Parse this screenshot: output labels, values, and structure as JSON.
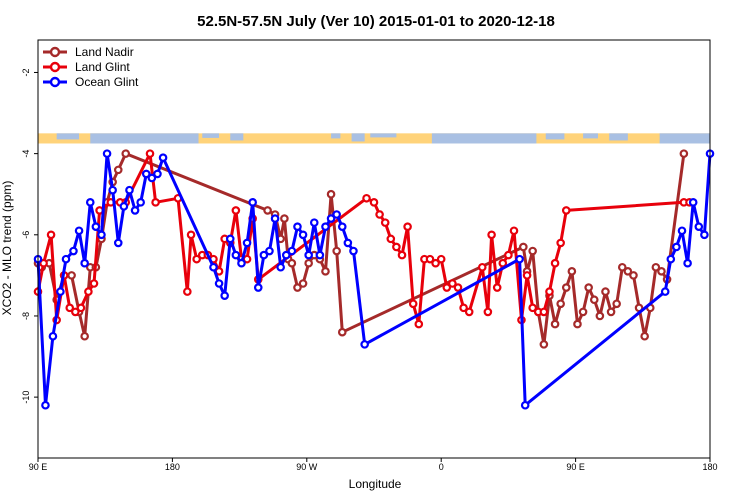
{
  "chart_data": {
    "type": "line",
    "title": "52.5N-57.5N July (Ver 10)   2015-01-01 to 2020-12-18",
    "xlabel": "Longitude",
    "ylabel": "XCO2 - MLO trend (ppm)",
    "xlim": [
      90,
      450
    ],
    "ylim": [
      -11.5,
      -1.2
    ],
    "xticks": [
      {
        "value": 90,
        "label": "90 E"
      },
      {
        "value": 180,
        "label": "180"
      },
      {
        "value": 270,
        "label": "90 W"
      },
      {
        "value": 360,
        "label": "0"
      },
      {
        "value": 450,
        "label": "90 E"
      },
      {
        "value": 540,
        "label": "180"
      }
    ],
    "xticks_visible": [
      90,
      162,
      234,
      306,
      378,
      450
    ],
    "yticks": [
      {
        "value": -2,
        "label": "-2"
      },
      {
        "value": -4,
        "label": "-4"
      },
      {
        "value": -6,
        "label": "-6"
      },
      {
        "value": -8,
        "label": "-8"
      },
      {
        "value": -10,
        "label": "-10"
      }
    ],
    "grid": false,
    "legend": "top-left",
    "land_ocean_strip": {
      "y_top": -3.5,
      "y_bottom": -3.75,
      "land_color": "#FFD37A",
      "ocean_color": "#A9C0E3"
    },
    "series": [
      {
        "name": "Land Nadir",
        "color": "#A52A2A",
        "points": [
          [
            90,
            -6.7
          ],
          [
            92,
            -6.8
          ],
          [
            96,
            -6.7
          ],
          [
            100,
            -7.6
          ],
          [
            104,
            -7.0
          ],
          [
            108,
            -7.0
          ],
          [
            112,
            -7.9
          ],
          [
            115,
            -8.5
          ],
          [
            118,
            -6.8
          ],
          [
            121,
            -6.8
          ],
          [
            124,
            -6.1
          ],
          [
            127,
            -5.2
          ],
          [
            130,
            -4.7
          ],
          [
            133,
            -4.4
          ],
          [
            137,
            -4.0
          ],
          [
            213,
            -5.4
          ],
          [
            217,
            -5.5
          ],
          [
            220,
            -6.1
          ],
          [
            222,
            -5.6
          ],
          [
            224,
            -6.6
          ],
          [
            226,
            -6.7
          ],
          [
            229,
            -7.3
          ],
          [
            232,
            -7.2
          ],
          [
            235,
            -6.7
          ],
          [
            238,
            -6.5
          ],
          [
            241,
            -6.6
          ],
          [
            244,
            -6.9
          ],
          [
            247,
            -5.0
          ],
          [
            250,
            -6.4
          ],
          [
            253,
            -8.4
          ],
          [
            350,
            -6.3
          ],
          [
            352,
            -6.9
          ],
          [
            355,
            -6.4
          ],
          [
            358,
            -7.9
          ],
          [
            361,
            -8.7
          ],
          [
            364,
            -7.5
          ],
          [
            367,
            -8.2
          ],
          [
            370,
            -7.7
          ],
          [
            373,
            -7.3
          ],
          [
            376,
            -6.9
          ],
          [
            379,
            -8.2
          ],
          [
            382,
            -7.9
          ],
          [
            385,
            -7.3
          ],
          [
            388,
            -7.6
          ],
          [
            391,
            -8.0
          ],
          [
            394,
            -7.4
          ],
          [
            397,
            -7.9
          ],
          [
            400,
            -7.7
          ],
          [
            403,
            -6.8
          ],
          [
            406,
            -6.9
          ],
          [
            409,
            -7.0
          ],
          [
            412,
            -7.8
          ],
          [
            415,
            -8.5
          ],
          [
            418,
            -7.8
          ],
          [
            421,
            -6.8
          ],
          [
            424,
            -6.9
          ],
          [
            427,
            -7.1
          ],
          [
            436,
            -4.0
          ]
        ]
      },
      {
        "name": "Land Glint",
        "color": "#E8000B",
        "points": [
          [
            90,
            -7.4
          ],
          [
            93,
            -6.7
          ],
          [
            97,
            -6.0
          ],
          [
            100,
            -8.1
          ],
          [
            104,
            -7.0
          ],
          [
            107,
            -7.8
          ],
          [
            110,
            -7.9
          ],
          [
            113,
            -7.8
          ],
          [
            117,
            -7.4
          ],
          [
            120,
            -7.2
          ],
          [
            123,
            -5.4
          ],
          [
            129,
            -5.2
          ],
          [
            134,
            -5.2
          ],
          [
            137,
            -5.2
          ],
          [
            150,
            -4.0
          ],
          [
            153,
            -5.2
          ],
          [
            165,
            -5.1
          ],
          [
            170,
            -7.4
          ],
          [
            172,
            -6.0
          ],
          [
            175,
            -6.6
          ],
          [
            178,
            -6.5
          ],
          [
            181,
            -6.5
          ],
          [
            184,
            -6.6
          ],
          [
            187,
            -6.9
          ],
          [
            190,
            -6.1
          ],
          [
            193,
            -6.2
          ],
          [
            196,
            -5.4
          ],
          [
            199,
            -6.6
          ],
          [
            202,
            -6.6
          ],
          [
            205,
            -5.6
          ],
          [
            208,
            -7.1
          ],
          [
            266,
            -5.1
          ],
          [
            270,
            -5.2
          ],
          [
            273,
            -5.5
          ],
          [
            276,
            -5.7
          ],
          [
            279,
            -6.1
          ],
          [
            282,
            -6.3
          ],
          [
            285,
            -6.5
          ],
          [
            288,
            -5.8
          ],
          [
            291,
            -7.7
          ],
          [
            294,
            -8.2
          ],
          [
            297,
            -6.6
          ],
          [
            300,
            -6.6
          ],
          [
            303,
            -6.7
          ],
          [
            306,
            -6.6
          ],
          [
            309,
            -7.3
          ],
          [
            312,
            -7.2
          ],
          [
            315,
            -7.3
          ],
          [
            318,
            -7.8
          ],
          [
            321,
            -7.9
          ],
          [
            328,
            -6.8
          ],
          [
            331,
            -7.9
          ],
          [
            333,
            -6.0
          ],
          [
            336,
            -7.3
          ],
          [
            339,
            -6.7
          ],
          [
            342,
            -6.5
          ],
          [
            345,
            -5.9
          ],
          [
            349,
            -8.1
          ],
          [
            352,
            -7.0
          ],
          [
            355,
            -7.8
          ],
          [
            358,
            -7.9
          ],
          [
            361,
            -7.9
          ],
          [
            364,
            -7.4
          ],
          [
            367,
            -6.7
          ],
          [
            370,
            -6.2
          ],
          [
            373,
            -5.4
          ],
          [
            436,
            -5.2
          ],
          [
            439,
            -5.2
          ]
        ]
      },
      {
        "name": "Ocean Glint",
        "color": "#0000FF",
        "points": [
          [
            90,
            -6.6
          ],
          [
            94,
            -10.2
          ],
          [
            98,
            -8.5
          ],
          [
            102,
            -7.4
          ],
          [
            105,
            -6.6
          ],
          [
            109,
            -6.4
          ],
          [
            112,
            -5.9
          ],
          [
            115,
            -6.7
          ],
          [
            118,
            -5.2
          ],
          [
            121,
            -5.8
          ],
          [
            124,
            -6.0
          ],
          [
            127,
            -4.0
          ],
          [
            130,
            -4.9
          ],
          [
            133,
            -6.2
          ],
          [
            136,
            -5.3
          ],
          [
            139,
            -4.9
          ],
          [
            142,
            -5.4
          ],
          [
            145,
            -5.2
          ],
          [
            148,
            -4.5
          ],
          [
            151,
            -4.6
          ],
          [
            154,
            -4.5
          ],
          [
            157,
            -4.1
          ],
          [
            184,
            -6.8
          ],
          [
            187,
            -7.2
          ],
          [
            190,
            -7.5
          ],
          [
            193,
            -6.1
          ],
          [
            196,
            -6.5
          ],
          [
            199,
            -6.7
          ],
          [
            202,
            -6.2
          ],
          [
            205,
            -5.2
          ],
          [
            208,
            -7.3
          ],
          [
            211,
            -6.5
          ],
          [
            214,
            -6.4
          ],
          [
            217,
            -5.6
          ],
          [
            220,
            -6.8
          ],
          [
            223,
            -6.5
          ],
          [
            226,
            -6.4
          ],
          [
            229,
            -5.8
          ],
          [
            232,
            -6.0
          ],
          [
            235,
            -6.5
          ],
          [
            238,
            -5.7
          ],
          [
            241,
            -6.5
          ],
          [
            244,
            -5.8
          ],
          [
            247,
            -5.6
          ],
          [
            250,
            -5.5
          ],
          [
            253,
            -5.8
          ],
          [
            256,
            -6.2
          ],
          [
            259,
            -6.4
          ],
          [
            265,
            -8.7
          ],
          [
            348,
            -6.6
          ],
          [
            351,
            -10.2
          ],
          [
            426,
            -7.4
          ],
          [
            429,
            -6.6
          ],
          [
            432,
            -6.3
          ],
          [
            435,
            -5.9
          ],
          [
            438,
            -6.7
          ],
          [
            441,
            -5.2
          ],
          [
            444,
            -5.8
          ],
          [
            447,
            -6.0
          ],
          [
            450,
            -4.0
          ]
        ]
      }
    ]
  }
}
